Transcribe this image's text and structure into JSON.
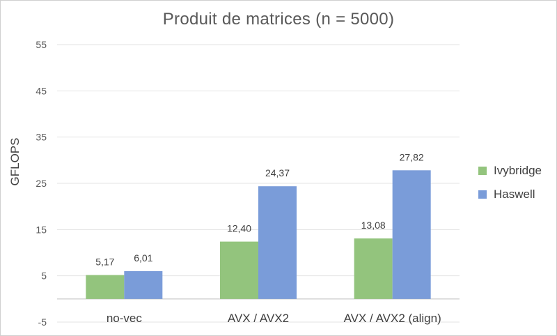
{
  "chart_data": {
    "type": "bar",
    "title": "Produit de matrices (n = 5000)",
    "xlabel": "",
    "ylabel": "GFLOPS",
    "categories": [
      "no-vec",
      "AVX / AVX2",
      "AVX / AVX2 (align)"
    ],
    "series": [
      {
        "name": "Ivybridge",
        "values": [
          5.17,
          12.4,
          13.08
        ],
        "labels": [
          "5,17",
          "12,40",
          "13,08"
        ],
        "color": "#93c47d"
      },
      {
        "name": "Haswell",
        "values": [
          6.01,
          24.37,
          27.82
        ],
        "labels": [
          "6,01",
          "24,37",
          "27,82"
        ],
        "color": "#7a9cd9"
      }
    ],
    "ylim": [
      -5,
      55
    ],
    "yticks": [
      -5,
      5,
      15,
      25,
      35,
      45,
      55
    ],
    "grid": true,
    "legend_position": "right"
  }
}
